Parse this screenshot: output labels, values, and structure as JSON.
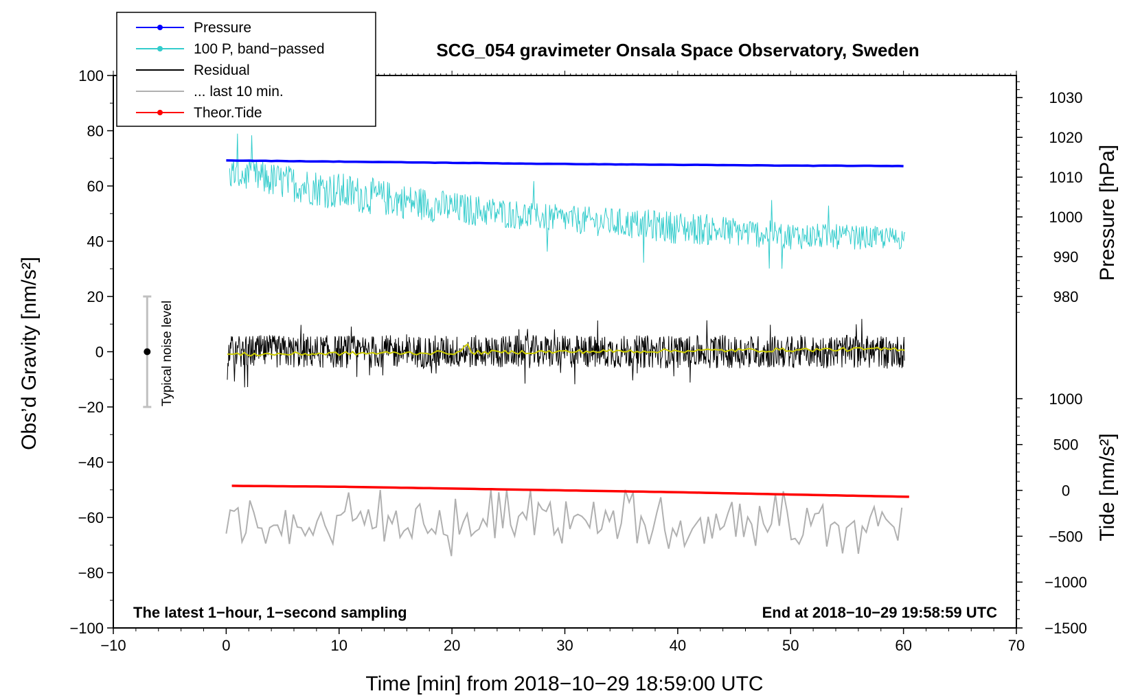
{
  "chart_data": {
    "type": "line",
    "title": "SCG_054 gravimeter Onsala Space Observatory, Sweden",
    "xlabel": "Time [min] from 2018−10−29 18:59:00 UTC",
    "ylabel_left": "Obs’d Gravity [nm/s²]",
    "ylabel_right_pressure": "Pressure [hPa]",
    "ylabel_right_tide": "Tide [nm/s²]",
    "xlim": [
      -10,
      70
    ],
    "ylim": [
      -100,
      100
    ],
    "x_ticks": [
      {
        "v": -10,
        "label": "−10"
      },
      {
        "v": 0,
        "label": "0"
      },
      {
        "v": 10,
        "label": "10"
      },
      {
        "v": 20,
        "label": "20"
      },
      {
        "v": 30,
        "label": "30"
      },
      {
        "v": 40,
        "label": "40"
      },
      {
        "v": 50,
        "label": "50"
      },
      {
        "v": 60,
        "label": "60"
      },
      {
        "v": 70,
        "label": "70"
      }
    ],
    "y_ticks": [
      {
        "v": 100,
        "label": "100"
      },
      {
        "v": 80,
        "label": "80"
      },
      {
        "v": 60,
        "label": "60"
      },
      {
        "v": 40,
        "label": "40"
      },
      {
        "v": 20,
        "label": "20"
      },
      {
        "v": 0,
        "label": "0"
      },
      {
        "v": -20,
        "label": "−20"
      },
      {
        "v": -40,
        "label": "−40"
      },
      {
        "v": -60,
        "label": "−60"
      },
      {
        "v": -80,
        "label": "−80"
      },
      {
        "v": -100,
        "label": "−100"
      }
    ],
    "pressure_axis": {
      "map_left_at": [
        [
          1030,
          92
        ],
        [
          980,
          20
        ]
      ],
      "ticks": [
        {
          "v": 1030,
          "label": "1030"
        },
        {
          "v": 1020,
          "label": "1020"
        },
        {
          "v": 1010,
          "label": "1010"
        },
        {
          "v": 1000,
          "label": "1000"
        },
        {
          "v": 990,
          "label": "990"
        },
        {
          "v": 980,
          "label": "980"
        }
      ]
    },
    "tide_axis": {
      "map_left_at": [
        [
          1000,
          -17
        ],
        [
          -1500,
          -100
        ]
      ],
      "ticks": [
        {
          "v": 1000,
          "label": "1000"
        },
        {
          "v": 500,
          "label": "500"
        },
        {
          "v": 0,
          "label": "0"
        },
        {
          "v": -500,
          "label": "−500"
        },
        {
          "v": -1000,
          "label": "−1000"
        },
        {
          "v": -1500,
          "label": "−1500"
        }
      ]
    },
    "legend": {
      "placement": "top-left",
      "entries": [
        {
          "name": "Pressure",
          "color": "#0000ff",
          "marker": true
        },
        {
          "name": "100 P, band−passed",
          "color": "#33cccc",
          "marker": true
        },
        {
          "name": "Residual",
          "color": "#000000",
          "marker": false
        },
        {
          "name": "... last 10 min.",
          "color": "#b0b0b0",
          "marker": false
        },
        {
          "name": "Theor.Tide",
          "color": "#ff0000",
          "marker": true
        }
      ]
    },
    "series": [
      {
        "name": "Pressure",
        "color": "#0000ff",
        "units": "hPa",
        "x": [
          0,
          10,
          20,
          30,
          40,
          50,
          60
        ],
        "values": [
          1014.2,
          1013.9,
          1013.6,
          1013.3,
          1013.1,
          1012.9,
          1012.8
        ]
      },
      {
        "name": "100 P, band−passed",
        "color": "#33cccc",
        "units": "nm/s²",
        "x": [
          0,
          10,
          20,
          30,
          40,
          50,
          60
        ],
        "center": [
          65,
          58,
          52,
          48,
          45,
          42,
          41
        ],
        "amplitude": [
          6,
          7,
          6,
          5,
          6,
          5,
          4
        ]
      },
      {
        "name": "Residual",
        "color": "#000000",
        "units": "nm/s²",
        "x": [
          0,
          60
        ],
        "center": [
          0,
          0
        ],
        "amplitude_range": [
          -13,
          14
        ]
      },
      {
        "name": "... last 10 min.",
        "color": "#b0b0b0",
        "units": "nm/s²",
        "x": [
          0,
          60
        ],
        "center": [
          -62,
          -62
        ],
        "amplitude_range": [
          -77,
          -50
        ]
      },
      {
        "name": "Theor.Tide",
        "color": "#ff0000",
        "units": "nm/s²",
        "x": [
          0,
          10,
          20,
          30,
          40,
          50,
          60.5
        ],
        "values": [
          50,
          40,
          20,
          0,
          -20,
          -45,
          -70
        ]
      },
      {
        "name": "Smoothed residual",
        "color": "#cccc00",
        "units": "nm/s²",
        "x": [
          0,
          60
        ],
        "values": [
          -1,
          1
        ]
      }
    ],
    "noise_bar": {
      "x": -7,
      "low": -20,
      "high": 20,
      "center": 0,
      "label": "Typical noise level"
    },
    "annotation_left": "The latest 1−hour, 1−second sampling",
    "annotation_right": "End at 2018−10−29 19:58:59 UTC"
  }
}
